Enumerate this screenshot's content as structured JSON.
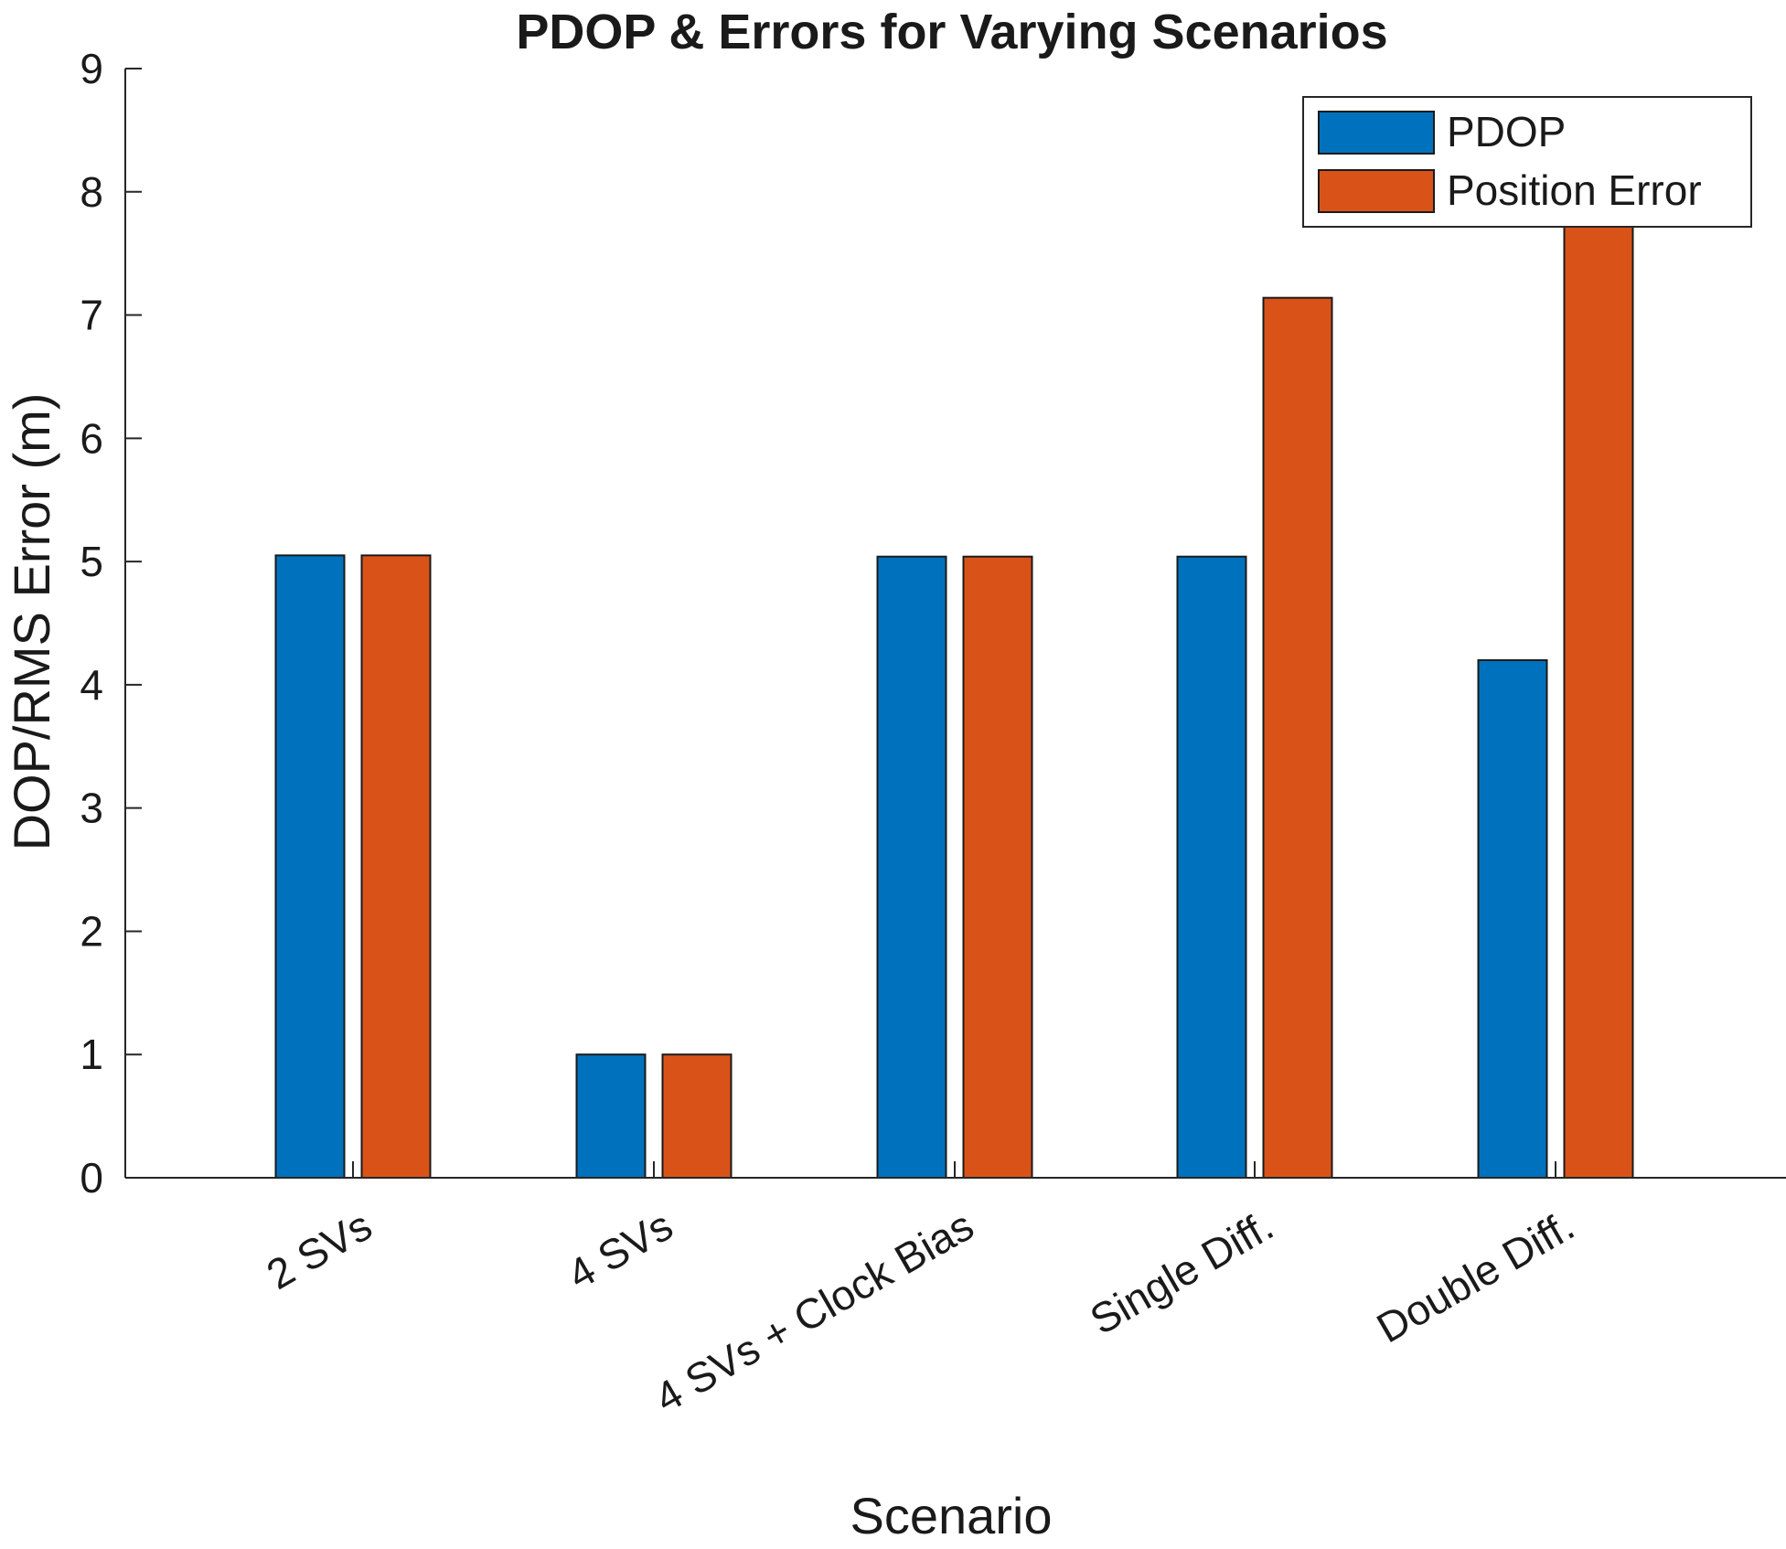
{
  "chart_data": {
    "type": "bar",
    "title": "PDOP & Errors for Varying Scenarios",
    "xlabel": "Scenario",
    "ylabel": "DOP/RMS Error (m)",
    "categories": [
      "2 SVs",
      "4 SVs",
      "4 SVs + Clock Bias",
      "Single Diff.",
      "Double Diff."
    ],
    "series": [
      {
        "name": "PDOP",
        "color": "#0072BD",
        "values": [
          5.05,
          1.0,
          5.04,
          5.04,
          4.2
        ]
      },
      {
        "name": "Position Error",
        "color": "#D95319",
        "values": [
          5.05,
          1.0,
          5.04,
          7.14,
          8.4
        ]
      }
    ],
    "ylim": [
      0,
      9
    ],
    "yticks": [
      "0",
      "1",
      "2",
      "3",
      "4",
      "5",
      "6",
      "7",
      "8",
      "9"
    ],
    "grid": false,
    "legend_position": "top-right"
  }
}
